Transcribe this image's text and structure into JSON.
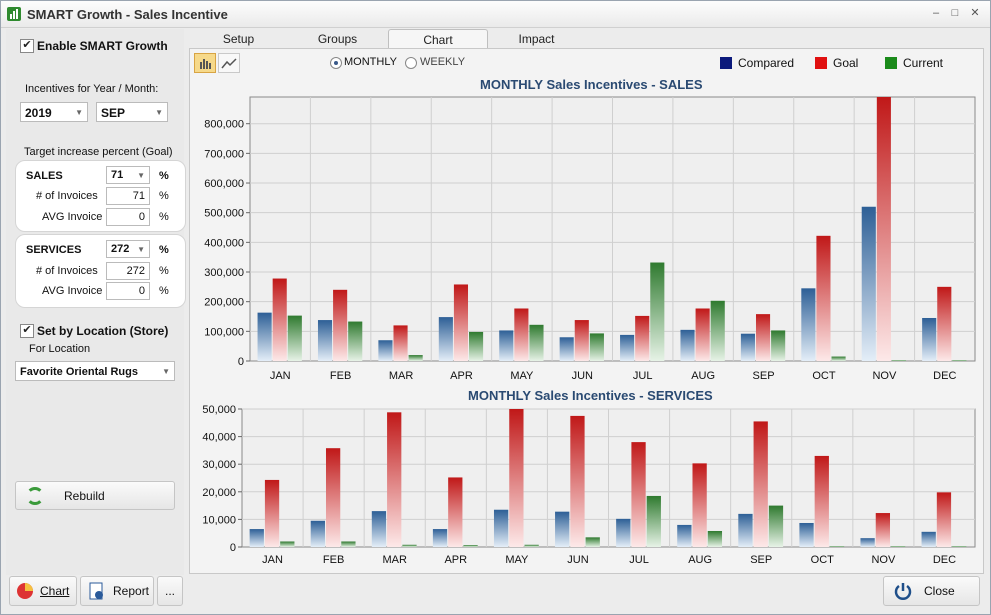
{
  "window": {
    "title": "SMART Growth - Sales Incentive",
    "controls": [
      "–",
      "□",
      "✕"
    ]
  },
  "left": {
    "enable_label": "Enable SMART Growth",
    "enable_checked": true,
    "incentives_label": "Incentives for Year / Month:",
    "year": "2019",
    "month": "SEP",
    "target_label": "Target increase percent (Goal)",
    "sales": {
      "title": "SALES",
      "value": "71",
      "pct": "%",
      "invoices_label": "# of Invoices",
      "invoices_value": "71",
      "avg_label": "AVG Invoice",
      "avg_value": "0"
    },
    "services": {
      "title": "SERVICES",
      "value": "272",
      "pct": "%",
      "invoices_label": "# of Invoices",
      "invoices_value": "272",
      "avg_label": "AVG Invoice",
      "avg_value": "0"
    },
    "set_by_location_label": "Set by Location (Store)",
    "set_by_location_checked": true,
    "for_location_label": "For Location",
    "location": "Favorite Oriental Rugs",
    "rebuild_label": "Rebuild"
  },
  "tabs": [
    "Setup",
    "Groups",
    "Chart",
    "Impact"
  ],
  "active_tab": "Chart",
  "toolbar": {
    "monthly_label": "MONTHLY",
    "weekly_label": "WEEKLY",
    "selected": "MONTHLY"
  },
  "legend": [
    {
      "name": "Compared",
      "color": "#0c1a7c"
    },
    {
      "name": "Goal",
      "color": "#e01010"
    },
    {
      "name": "Current",
      "color": "#1a8a1a"
    }
  ],
  "chart_data": [
    {
      "type": "bar",
      "title": "MONTHLY Sales Incentives - SALES",
      "categories": [
        "JAN",
        "FEB",
        "MAR",
        "APR",
        "MAY",
        "JUN",
        "JUL",
        "AUG",
        "SEP",
        "OCT",
        "NOV",
        "DEC"
      ],
      "ylim": [
        0,
        890000
      ],
      "yticks": [
        0,
        100000,
        200000,
        300000,
        400000,
        500000,
        600000,
        700000,
        800000
      ],
      "ytick_labels": [
        "0",
        "100,000",
        "200,000",
        "300,000",
        "400,000",
        "500,000",
        "600,000",
        "700,000",
        "800,000"
      ],
      "grid": true,
      "series": [
        {
          "name": "Compared",
          "values": [
            163000,
            138000,
            70000,
            148000,
            103000,
            80000,
            88000,
            105000,
            92000,
            245000,
            520000,
            145000
          ]
        },
        {
          "name": "Goal",
          "values": [
            278000,
            240000,
            120000,
            258000,
            177000,
            138000,
            152000,
            177000,
            158000,
            422000,
            890000,
            250000
          ]
        },
        {
          "name": "Current",
          "values": [
            153000,
            133000,
            20000,
            98000,
            122000,
            93000,
            332000,
            203000,
            103000,
            15000,
            0,
            0
          ]
        }
      ]
    },
    {
      "type": "bar",
      "title": "MONTHLY Sales Incentives - SERVICES",
      "categories": [
        "JAN",
        "FEB",
        "MAR",
        "APR",
        "MAY",
        "JUN",
        "JUL",
        "AUG",
        "SEP",
        "OCT",
        "NOV",
        "DEC"
      ],
      "ylim": [
        0,
        50000
      ],
      "yticks": [
        0,
        10000,
        20000,
        30000,
        40000,
        50000
      ],
      "ytick_labels": [
        "0",
        "10,000",
        "20,000",
        "30,000",
        "40,000",
        "50,000"
      ],
      "grid": true,
      "series": [
        {
          "name": "Compared",
          "values": [
            6500,
            9500,
            13000,
            6500,
            13500,
            12800,
            10200,
            8000,
            12000,
            8700,
            3200,
            5500
          ]
        },
        {
          "name": "Goal",
          "values": [
            24300,
            35800,
            48800,
            25200,
            50000,
            47500,
            38000,
            30300,
            45500,
            33000,
            12300,
            19800
          ]
        },
        {
          "name": "Current",
          "values": [
            2000,
            2000,
            800,
            700,
            800,
            3500,
            18500,
            5800,
            15000,
            0,
            0,
            0
          ]
        }
      ]
    }
  ],
  "bottom": {
    "chart_label": "Chart",
    "report_label": "Report",
    "more_label": "...",
    "close_label": "Close"
  }
}
